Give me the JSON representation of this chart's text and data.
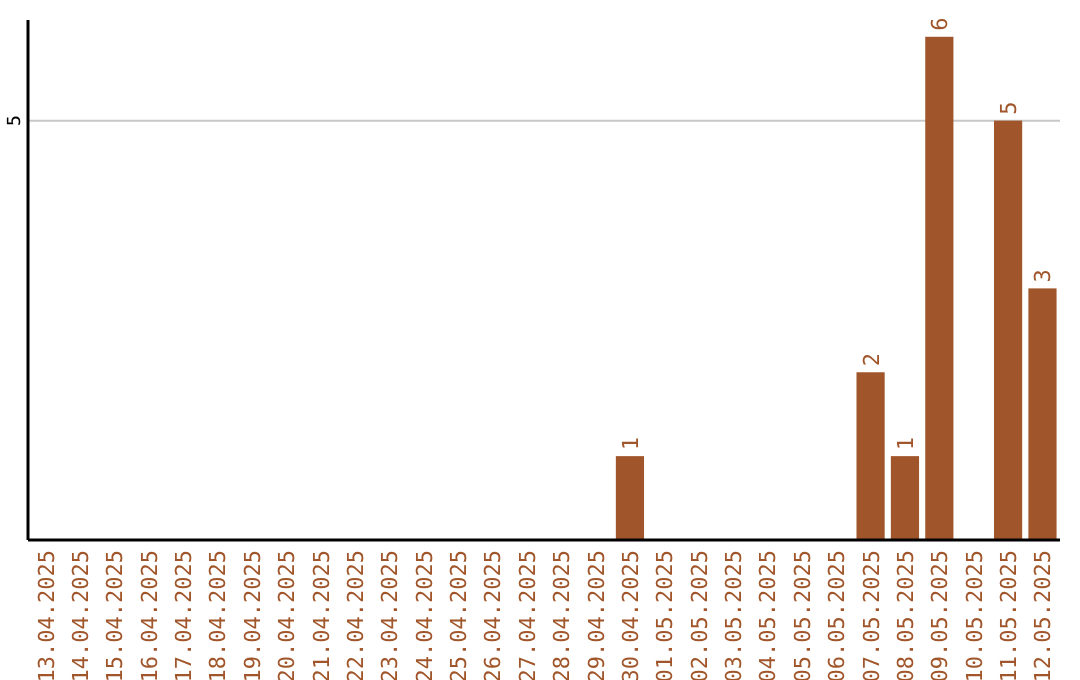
{
  "chart_data": {
    "type": "bar",
    "categories": [
      "13.04.2025",
      "14.04.2025",
      "15.04.2025",
      "16.04.2025",
      "17.04.2025",
      "18.04.2025",
      "19.04.2025",
      "20.04.2025",
      "21.04.2025",
      "22.04.2025",
      "23.04.2025",
      "24.04.2025",
      "25.04.2025",
      "26.04.2025",
      "27.04.2025",
      "28.04.2025",
      "29.04.2025",
      "30.04.2025",
      "01.05.2025",
      "02.05.2025",
      "03.05.2025",
      "04.05.2025",
      "05.05.2025",
      "06.05.2025",
      "07.05.2025",
      "08.05.2025",
      "09.05.2025",
      "10.05.2025",
      "11.05.2025",
      "12.05.2025"
    ],
    "values": [
      null,
      null,
      null,
      null,
      null,
      null,
      null,
      null,
      null,
      null,
      null,
      null,
      null,
      null,
      null,
      null,
      null,
      1,
      null,
      null,
      null,
      null,
      null,
      null,
      2,
      1,
      6,
      null,
      5,
      3
    ],
    "data_labels": true,
    "color": "#a0562a",
    "ylim": [
      0,
      6.2
    ],
    "yticks": [
      5
    ],
    "grid": "y"
  }
}
